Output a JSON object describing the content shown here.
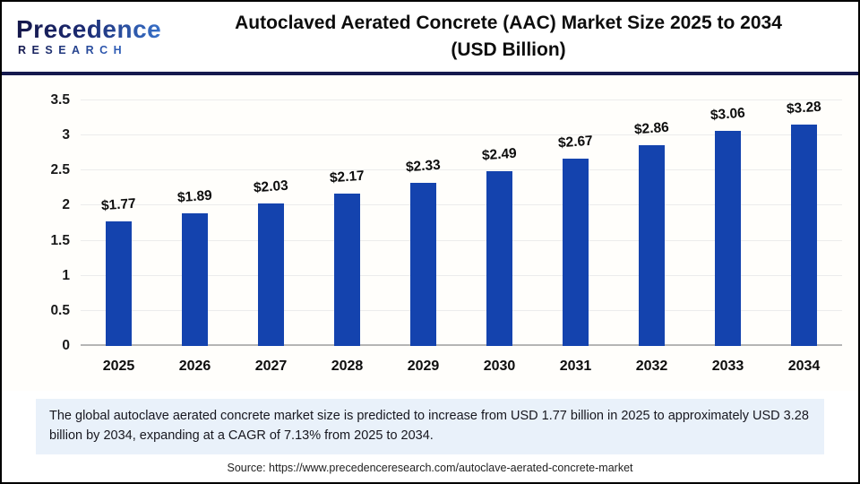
{
  "header": {
    "logo_line1": "Precedence",
    "logo_line2": "RESEARCH",
    "title_line1": "Autoclaved Aerated Concrete (AAC) Market Size 2025 to 2034",
    "title_line2": "(USD Billion)"
  },
  "chart_data": {
    "type": "bar",
    "title": "Autoclaved Aerated Concrete (AAC) Market Size 2025 to 2034 (USD Billion)",
    "categories": [
      "2025",
      "2026",
      "2027",
      "2028",
      "2029",
      "2030",
      "2031",
      "2032",
      "2033",
      "2034"
    ],
    "values": [
      1.77,
      1.89,
      2.03,
      2.17,
      2.33,
      2.49,
      2.67,
      2.86,
      3.06,
      3.28
    ],
    "value_labels": [
      "$1.77",
      "$1.89",
      "$2.03",
      "$2.17",
      "$2.33",
      "$2.49",
      "$2.67",
      "$2.86",
      "$3.06",
      "$3.28"
    ],
    "xlabel": "",
    "ylabel": "",
    "ylim": [
      0,
      3.5
    ],
    "yticks": [
      "0",
      "0.5",
      "1",
      "1.5",
      "2",
      "2.5",
      "3",
      "3.5"
    ],
    "grid": true,
    "legend": "none",
    "bar_color": "#1443ae"
  },
  "footer": {
    "summary": "The global autoclave aerated concrete market size is predicted to increase from USD 1.77 billion in 2025 to approximately USD 3.28 billion by 2034, expanding at a CAGR of 7.13% from 2025 to 2034.",
    "source": "Source: https://www.precedenceresearch.com/autoclave-aerated-concrete-market"
  },
  "colors": {
    "bar": "#1443ae",
    "divider": "#161a4e",
    "summary_bg": "#e9f1fa",
    "gridline": "#ececec",
    "baseline": "#b5b5b5"
  }
}
